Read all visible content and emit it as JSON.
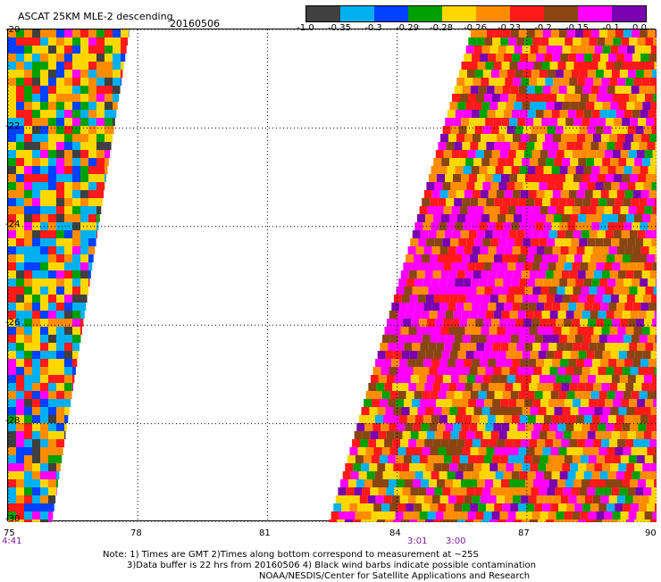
{
  "header": {
    "title": "ASCAT 25KM MLE-2 descending",
    "date": "20160506"
  },
  "colorbar": {
    "colors": [
      "#404040",
      "#00b0f0",
      "#0040ff",
      "#00a000",
      "#ffd700",
      "#ff8c00",
      "#ff1a1a",
      "#8b4513",
      "#ff00ff",
      "#7a00b0"
    ],
    "labels": [
      "-1.0",
      "-0.35",
      "-0.3",
      "-0.29",
      "-0.28",
      "-0.26",
      "-0.23",
      "-0.2",
      "-0.15",
      "-0.1",
      "0.0"
    ]
  },
  "map": {
    "lat_labels": [
      "-20",
      "-22",
      "-24",
      "-26",
      "-28",
      "-30"
    ],
    "lon_labels": [
      "75",
      "78",
      "81",
      "84",
      "87",
      "90"
    ],
    "lat_range": [
      -30,
      -20
    ],
    "lon_range": [
      75,
      90
    ],
    "grid": "dotted",
    "swaths": [
      {
        "name": "left",
        "lat_top": -20,
        "lat_bottom": -30,
        "west": 75,
        "east_top": 77.8,
        "east_bottom": 76.0
      },
      {
        "name": "right",
        "lat_top": -20,
        "lat_bottom": -30,
        "west_top": 85.7,
        "west_bottom": 82.4,
        "east": 90
      }
    ]
  },
  "times": {
    "left": "4:41",
    "right_a": "3:01",
    "right_b": "3:00"
  },
  "notes": {
    "line1": "Note: 1) Times are GMT 2)Times along bottom correspond to measurement at ~25S",
    "line2": "3)Data buffer is 22 hrs from 20160506 4) Black wind barbs indicate possible contamination",
    "line3": "NOAA/NESDIS/Center for Satellite Applications and Research"
  }
}
